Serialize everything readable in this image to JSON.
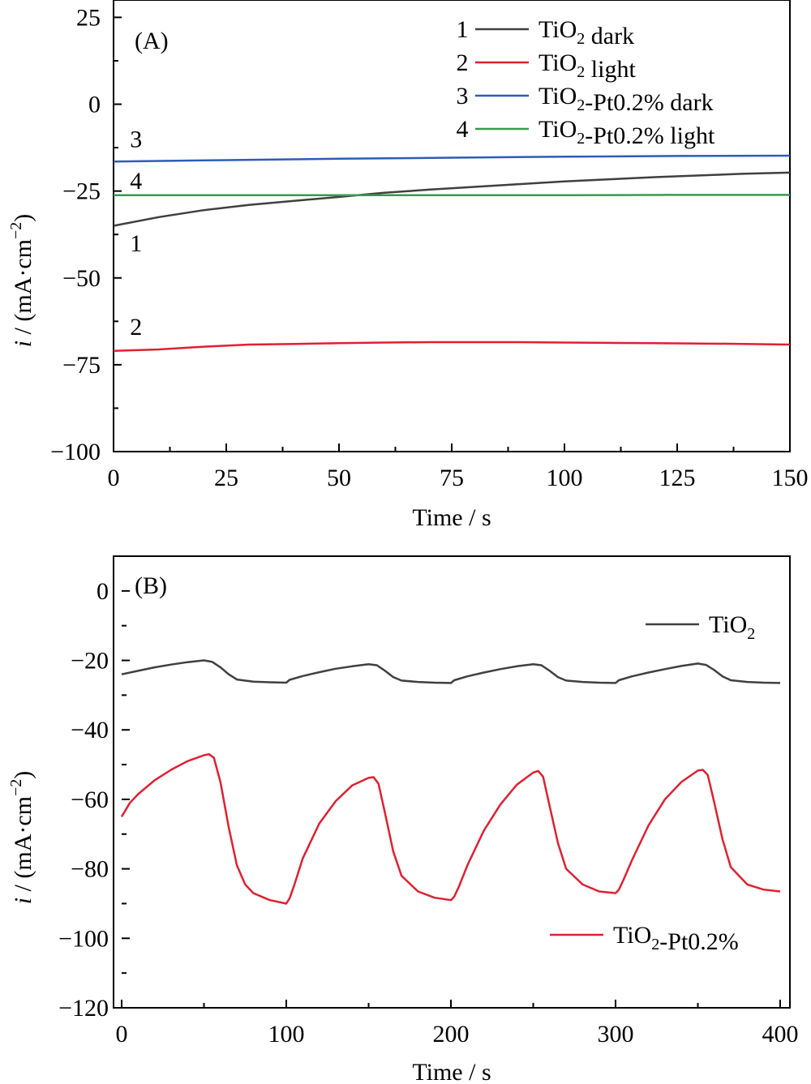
{
  "chart_data": [
    {
      "type": "line",
      "panel_label": "(A)",
      "xlabel": "Time / s",
      "ylabel": "i / (mA·cm⁻²)",
      "xlim": [
        0,
        150
      ],
      "ylim": [
        -100,
        30
      ],
      "xticks": [
        0,
        25,
        50,
        75,
        100,
        125,
        150
      ],
      "yticks": [
        25,
        0,
        -25,
        -50,
        -75,
        -100
      ],
      "legend_position": "top-right",
      "legend": [
        {
          "number": "1",
          "label": "TiO₂ dark",
          "color": "#404040"
        },
        {
          "number": "2",
          "label": "TiO₂ light",
          "color": "#e02030"
        },
        {
          "number": "3",
          "label": "TiO₂-Pt0.2% dark",
          "color": "#2e5cb8"
        },
        {
          "number": "4",
          "label": "TiO₂-Pt0.2% light",
          "color": "#3a9a50"
        }
      ],
      "series": [
        {
          "number": "1",
          "label_pos": [
            5,
            -40
          ],
          "color": "#404040",
          "x": [
            0,
            10,
            20,
            30,
            40,
            50,
            60,
            70,
            80,
            90,
            100,
            110,
            120,
            130,
            140,
            150
          ],
          "y": [
            -35,
            -32.5,
            -30.5,
            -29,
            -27.8,
            -26.7,
            -25.5,
            -24.6,
            -23.8,
            -23,
            -22.2,
            -21.6,
            -21,
            -20.5,
            -20,
            -19.7
          ]
        },
        {
          "number": "2",
          "label_pos": [
            5,
            -64
          ],
          "color": "#e02030",
          "x": [
            0,
            10,
            20,
            30,
            40,
            50,
            60,
            70,
            80,
            90,
            100,
            110,
            120,
            130,
            140,
            150
          ],
          "y": [
            -71,
            -70.6,
            -69.8,
            -69.2,
            -69,
            -68.8,
            -68.6,
            -68.5,
            -68.5,
            -68.5,
            -68.6,
            -68.7,
            -68.8,
            -68.9,
            -69,
            -69.2
          ]
        },
        {
          "number": "3",
          "label_pos": [
            5,
            -10
          ],
          "color": "#2e5cb8",
          "x": [
            0,
            25,
            50,
            75,
            100,
            125,
            150
          ],
          "y": [
            -16.5,
            -16.1,
            -15.7,
            -15.4,
            -15.1,
            -14.9,
            -14.8
          ]
        },
        {
          "number": "4",
          "label_pos": [
            5,
            -22
          ],
          "color": "#3a9a50",
          "x": [
            0,
            25,
            50,
            75,
            100,
            125,
            150
          ],
          "y": [
            -26.2,
            -26.2,
            -26.2,
            -26.2,
            -26.2,
            -26.1,
            -26.1
          ]
        }
      ]
    },
    {
      "type": "line",
      "panel_label": "(B)",
      "xlabel": "Time / s",
      "ylabel": "i / (mA·cm⁻²)",
      "xlim": [
        0,
        400
      ],
      "ylim": [
        -120,
        10
      ],
      "xticks": [
        0,
        100,
        200,
        300,
        400
      ],
      "yticks": [
        0,
        -20,
        -40,
        -60,
        -80,
        -100,
        -120
      ],
      "series": [
        {
          "name": "TiO₂",
          "color": "#404040",
          "legend_position": "top-right",
          "x": [
            0,
            10,
            20,
            30,
            40,
            50,
            55,
            60,
            65,
            70,
            80,
            90,
            100,
            102,
            110,
            120,
            130,
            140,
            150,
            155,
            160,
            165,
            170,
            180,
            190,
            200,
            202,
            210,
            220,
            230,
            240,
            250,
            255,
            260,
            265,
            270,
            280,
            290,
            300,
            302,
            310,
            320,
            330,
            340,
            350,
            355,
            360,
            365,
            370,
            380,
            390,
            400
          ],
          "y": [
            -24,
            -23,
            -22,
            -21.2,
            -20.5,
            -20,
            -20.4,
            -22,
            -24,
            -25.5,
            -26.1,
            -26.3,
            -26.4,
            -25.6,
            -24.5,
            -23.4,
            -22.4,
            -21.7,
            -21.1,
            -21.4,
            -23,
            -24.8,
            -25.8,
            -26.2,
            -26.4,
            -26.5,
            -25.7,
            -24.6,
            -23.5,
            -22.5,
            -21.7,
            -21.1,
            -21.4,
            -23,
            -24.8,
            -25.8,
            -26.2,
            -26.4,
            -26.5,
            -25.7,
            -24.6,
            -23.5,
            -22.5,
            -21.6,
            -20.9,
            -21.3,
            -22.8,
            -24.6,
            -25.7,
            -26.2,
            -26.4,
            -26.5
          ]
        },
        {
          "name": "TiO₂-Pt0.2%",
          "color": "#e02030",
          "legend_position": "bottom-right",
          "x": [
            0,
            5,
            10,
            20,
            30,
            40,
            50,
            53,
            56,
            60,
            65,
            70,
            75,
            80,
            90,
            100,
            102,
            105,
            110,
            120,
            130,
            140,
            150,
            153,
            156,
            160,
            165,
            170,
            180,
            190,
            200,
            202,
            205,
            210,
            220,
            230,
            240,
            250,
            253,
            256,
            260,
            265,
            270,
            280,
            290,
            300,
            302,
            305,
            310,
            320,
            330,
            340,
            350,
            353,
            356,
            360,
            365,
            370,
            380,
            390,
            400
          ],
          "y": [
            -65,
            -61,
            -58.5,
            -54.5,
            -51.5,
            -49,
            -47.3,
            -47,
            -48,
            -55,
            -68,
            -79,
            -84.5,
            -87,
            -89,
            -90,
            -88.5,
            -84.5,
            -77,
            -67,
            -60.5,
            -56,
            -53.8,
            -53.6,
            -55.5,
            -64,
            -75,
            -82,
            -86.5,
            -88.3,
            -89,
            -88,
            -85,
            -79,
            -69,
            -61.5,
            -55.8,
            -52.3,
            -51.8,
            -53.5,
            -62,
            -72.5,
            -80,
            -84.5,
            -86.5,
            -87,
            -86,
            -83,
            -77.5,
            -67.5,
            -60,
            -55,
            -51.7,
            -51.5,
            -53,
            -61,
            -71.5,
            -79.5,
            -84.5,
            -86,
            -86.5
          ]
        }
      ]
    }
  ]
}
